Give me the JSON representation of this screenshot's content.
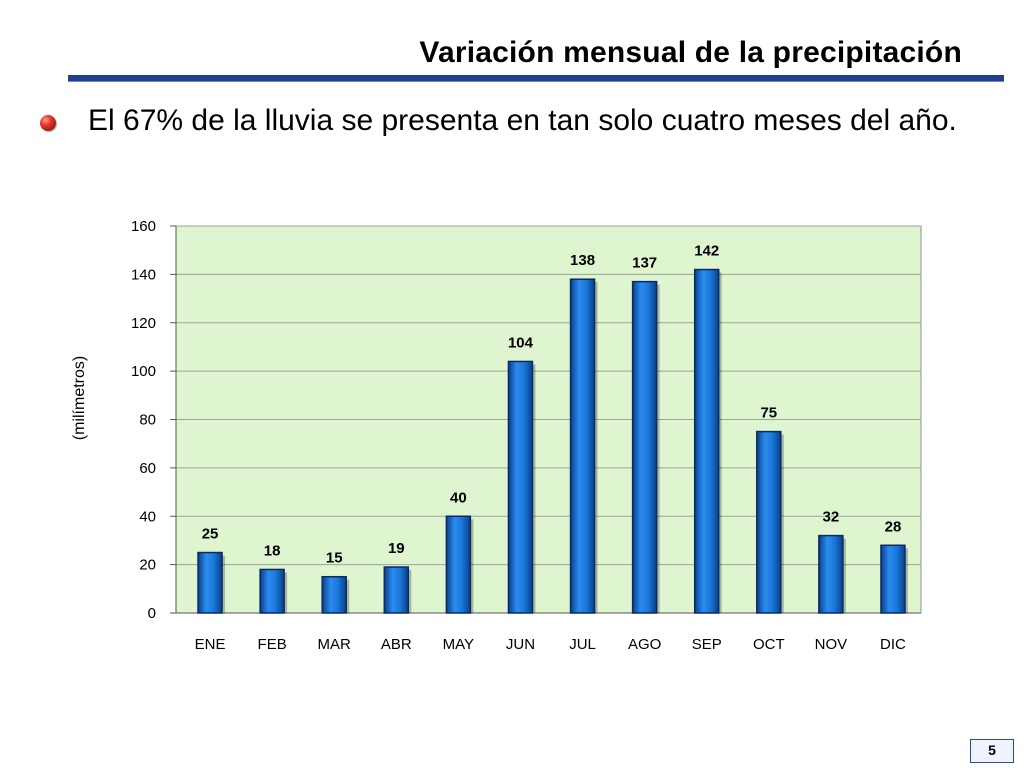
{
  "slide": {
    "title": "Variación mensual de la precipitación",
    "bullet": "El 67% de la lluvia se presenta en tan solo cuatro meses del año.",
    "page_number": "5"
  },
  "chart_data": {
    "type": "bar",
    "title": "",
    "xlabel": "",
    "ylabel": "(milímetros)",
    "categories": [
      "ENE",
      "FEB",
      "MAR",
      "ABR",
      "MAY",
      "JUN",
      "JUL",
      "AGO",
      "SEP",
      "OCT",
      "NOV",
      "DIC"
    ],
    "values": [
      25,
      18,
      15,
      19,
      40,
      104,
      138,
      137,
      142,
      75,
      32,
      28
    ],
    "ylim": [
      0,
      160
    ],
    "yticks": [
      0,
      20,
      40,
      60,
      80,
      100,
      120,
      140,
      160
    ],
    "grid": true,
    "legend": "none",
    "colors": {
      "bar": "#1a78d8",
      "bar_edge": "#0a2a66",
      "plot_background": "#dff5d0",
      "gridline": "#9aa59a"
    }
  }
}
